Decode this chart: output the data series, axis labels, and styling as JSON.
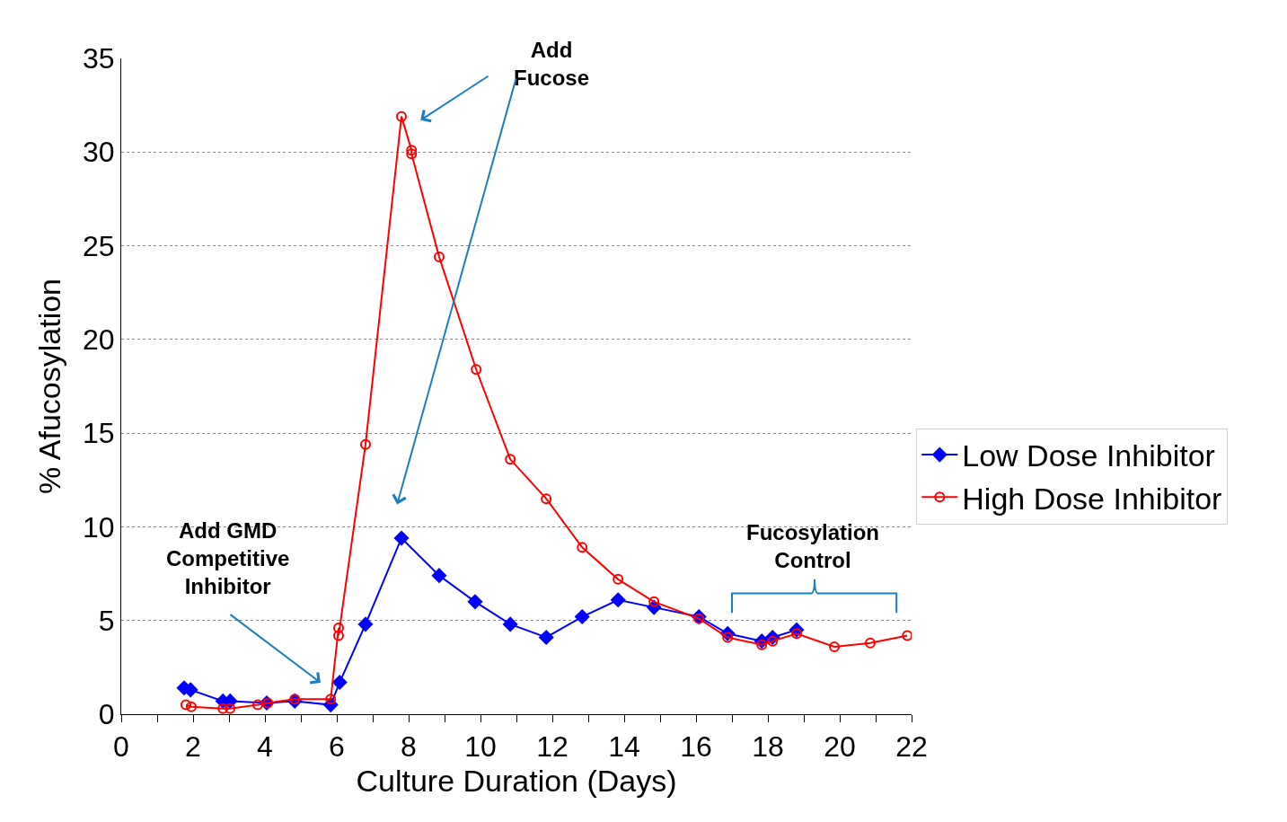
{
  "chart_data": {
    "type": "line",
    "xlabel": "Culture Duration (Days)",
    "ylabel": "% Afucosylation",
    "xlim": [
      0,
      22
    ],
    "xticks": [
      0,
      {
        "value": 1,
        "label": null
      },
      2,
      {
        "value": 3,
        "label": null
      },
      4,
      {
        "value": 5,
        "label": null
      },
      6,
      {
        "value": 7,
        "label": null
      },
      8,
      {
        "value": 9,
        "label": null
      },
      10,
      {
        "value": 11,
        "label": null
      },
      12,
      {
        "value": 13,
        "label": null
      },
      14,
      {
        "value": 15,
        "label": null
      },
      16,
      {
        "value": 17,
        "label": null
      },
      18,
      {
        "value": 19,
        "label": null
      },
      20,
      {
        "value": 21,
        "label": null
      },
      22
    ],
    "ylim": [
      0,
      35
    ],
    "yticks": [
      0,
      5,
      10,
      15,
      20,
      25,
      30,
      35
    ],
    "grid": "y",
    "legend": "right",
    "series": [
      {
        "name": "Low Dose Inhibitor",
        "color": "#0000ff",
        "marker": "diamond",
        "x": [
          1.75,
          1.93,
          2.83,
          3.03,
          4.05,
          4.83,
          5.83,
          6.08,
          6.8,
          7.8,
          8.85,
          9.85,
          10.83,
          11.83,
          12.83,
          13.83,
          14.83,
          16.08,
          16.88,
          17.83,
          18.13,
          18.8
        ],
        "values": [
          1.4,
          1.3,
          0.7,
          0.7,
          0.6,
          0.7,
          0.5,
          1.7,
          4.8,
          9.4,
          7.4,
          6.0,
          4.8,
          4.1,
          5.2,
          6.1,
          5.7,
          5.2,
          4.3,
          3.9,
          4.1,
          4.5
        ]
      },
      {
        "name": "High Dose Inhibitor",
        "color": "#ff0000",
        "marker": "circle",
        "x": [
          1.8,
          1.95,
          2.83,
          3.03,
          3.8,
          4.08,
          4.83,
          5.83,
          6.05,
          6.05,
          6.8,
          7.8,
          8.08,
          8.08,
          8.85,
          9.88,
          10.83,
          11.83,
          12.83,
          13.83,
          14.83,
          16.08,
          16.88,
          17.83,
          18.13,
          18.8,
          19.85,
          20.85,
          21.88
        ],
        "values": [
          0.5,
          0.4,
          0.3,
          0.3,
          0.5,
          0.6,
          0.8,
          0.8,
          4.6,
          4.2,
          14.4,
          31.9,
          30.1,
          29.9,
          24.4,
          18.4,
          13.6,
          11.5,
          8.9,
          7.2,
          6.0,
          5.1,
          4.1,
          3.7,
          3.9,
          4.3,
          3.6,
          3.8,
          4.2
        ]
      }
    ],
    "annotations": [
      "Add Fucose",
      "Add GMD Competitive Inhibitor",
      "Fucosylation Control"
    ]
  }
}
